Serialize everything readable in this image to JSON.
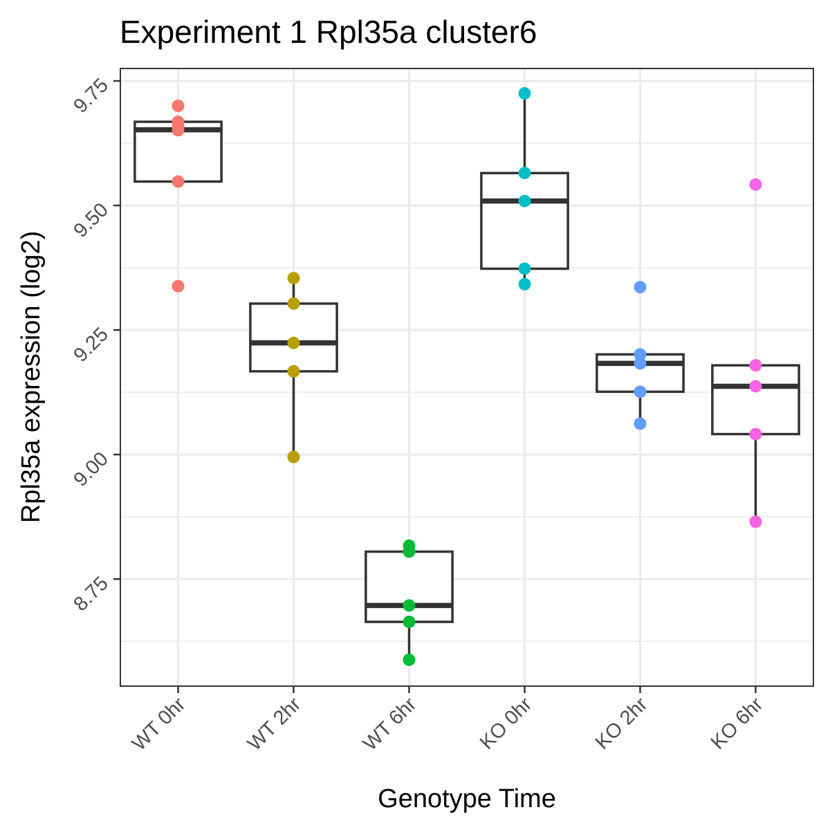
{
  "chart_data": {
    "type": "box",
    "title": "Experiment 1 Rpl35a cluster6",
    "xlabel": "Genotype Time",
    "ylabel": "Rpl35a expression (log2)",
    "ylim": [
      8.535,
      9.775
    ],
    "yticks": [
      8.75,
      9.0,
      9.25,
      9.5,
      9.75
    ],
    "ytick_labels": [
      "8.75",
      "9.00",
      "9.25",
      "9.50",
      "9.75"
    ],
    "categories": [
      "WT 0hr",
      "WT 2hr",
      "WT 6hr",
      "KO 0hr",
      "KO 2hr",
      "KO 6hr"
    ],
    "grid": true,
    "legend": "none",
    "groups": [
      {
        "name": "WT 0hr",
        "color": "#F8766D",
        "q1": 9.548,
        "median": 9.652,
        "q3": 9.668,
        "whisker_low": 9.548,
        "whisker_high": 9.668,
        "points": [
          9.7,
          9.668,
          9.658,
          9.651,
          9.548,
          9.338
        ]
      },
      {
        "name": "WT 2hr",
        "color": "#B79F00",
        "q1": 9.167,
        "median": 9.224,
        "q3": 9.303,
        "whisker_low": 8.995,
        "whisker_high": 9.354,
        "points": [
          9.354,
          9.303,
          9.224,
          9.167,
          8.995
        ]
      },
      {
        "name": "WT 6hr",
        "color": "#00BA38",
        "q1": 8.664,
        "median": 8.697,
        "q3": 8.805,
        "whisker_low": 8.588,
        "whisker_high": 8.817,
        "points": [
          8.817,
          8.805,
          8.697,
          8.664,
          8.588
        ]
      },
      {
        "name": "KO 0hr",
        "color": "#00BFC4",
        "q1": 9.373,
        "median": 9.509,
        "q3": 9.565,
        "whisker_low": 9.342,
        "whisker_high": 9.725,
        "points": [
          9.725,
          9.565,
          9.509,
          9.373,
          9.342
        ]
      },
      {
        "name": "KO 2hr",
        "color": "#619CFF",
        "q1": 9.126,
        "median": 9.183,
        "q3": 9.201,
        "whisker_low": 9.062,
        "whisker_high": 9.201,
        "points": [
          9.336,
          9.201,
          9.183,
          9.126,
          9.062
        ]
      },
      {
        "name": "KO 6hr",
        "color": "#F564E3",
        "q1": 9.041,
        "median": 9.137,
        "q3": 9.179,
        "whisker_low": 8.865,
        "whisker_high": 9.179,
        "points": [
          9.542,
          9.179,
          9.137,
          9.041,
          8.865
        ]
      }
    ]
  }
}
